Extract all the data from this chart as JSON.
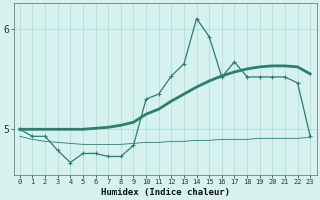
{
  "xlabel": "Humidex (Indice chaleur)",
  "x": [
    0,
    1,
    2,
    3,
    4,
    5,
    6,
    7,
    8,
    9,
    10,
    11,
    12,
    13,
    14,
    15,
    16,
    17,
    18,
    19,
    20,
    21,
    22,
    23
  ],
  "y_main": [
    5.0,
    4.93,
    4.93,
    4.79,
    4.67,
    4.76,
    4.76,
    4.73,
    4.73,
    4.84,
    5.3,
    5.35,
    5.53,
    5.65,
    6.1,
    5.92,
    5.52,
    5.67,
    5.52,
    5.52,
    5.52,
    5.52,
    5.46,
    4.93
  ],
  "y_upper": [
    5.0,
    5.0,
    5.0,
    5.0,
    5.0,
    5.0,
    5.01,
    5.02,
    5.04,
    5.07,
    5.15,
    5.2,
    5.28,
    5.35,
    5.42,
    5.48,
    5.53,
    5.57,
    5.6,
    5.62,
    5.63,
    5.63,
    5.62,
    5.55
  ],
  "y_lower": [
    4.93,
    4.9,
    4.88,
    4.87,
    4.86,
    4.85,
    4.85,
    4.85,
    4.85,
    4.86,
    4.87,
    4.87,
    4.88,
    4.88,
    4.89,
    4.89,
    4.9,
    4.9,
    4.9,
    4.91,
    4.91,
    4.91,
    4.91,
    4.92
  ],
  "line_color": "#2E7D6E",
  "bg_color": "#D5F2EE",
  "grid_color": "#B0D8D2",
  "ylim_min": 4.55,
  "ylim_max": 6.25,
  "ytick_positions": [
    5,
    6
  ],
  "ytick_labels": [
    "5",
    "6"
  ]
}
